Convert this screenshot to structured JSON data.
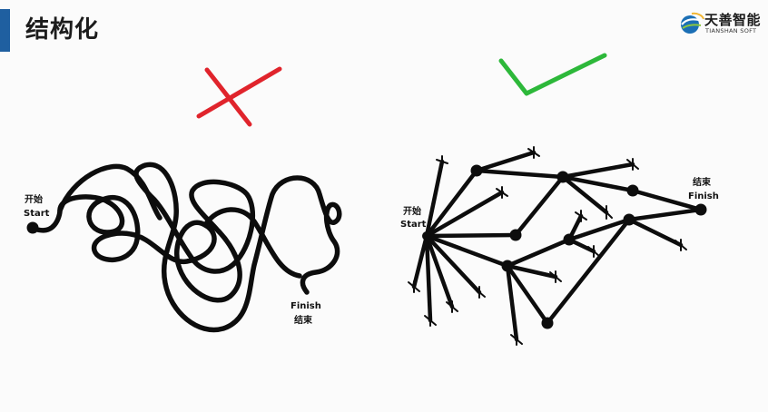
{
  "header": {
    "title": "结构化",
    "accent_color": "#1f5fa0"
  },
  "logo": {
    "name": "天善智能",
    "subtitle": "TIANSHAN SOFT",
    "icon": "globe-swoosh-icon"
  },
  "left_diagram": {
    "verdict": "wrong",
    "verdict_icon": "red-cross-icon",
    "verdict_color": "#e0242c",
    "start_label_cn": "开始",
    "start_label_en": "Start",
    "finish_label_en": "Finish",
    "finish_label_cn": "结束"
  },
  "right_diagram": {
    "verdict": "correct",
    "verdict_icon": "green-check-icon",
    "verdict_color": "#2db83a",
    "start_label_cn": "开始",
    "start_label_en": "Start",
    "finish_label_cn": "结束",
    "finish_label_en": "Finish"
  }
}
